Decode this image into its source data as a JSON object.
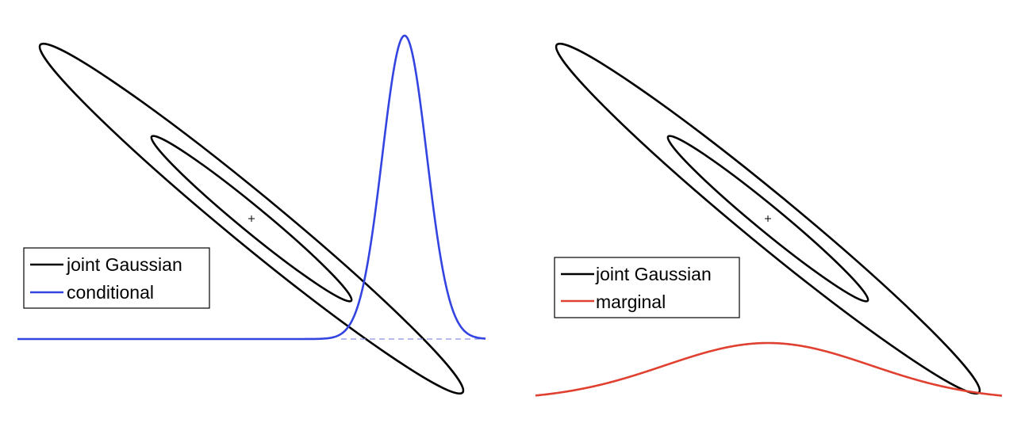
{
  "panels": [
    {
      "id": "left",
      "legend": [
        {
          "label": "joint Gaussian",
          "color": "#000000"
        },
        {
          "label": "conditional",
          "color": "#3344e0"
        }
      ]
    },
    {
      "id": "right",
      "legend": [
        {
          "label": "joint Gaussian",
          "color": "#000000"
        },
        {
          "label": "marginal",
          "color": "#e04030"
        }
      ]
    }
  ],
  "colors": {
    "ellipse": "#000000",
    "conditional": "#3344e0",
    "conditional_baseline_dashed": "#8d92e8",
    "marginal": "#e04030"
  }
}
